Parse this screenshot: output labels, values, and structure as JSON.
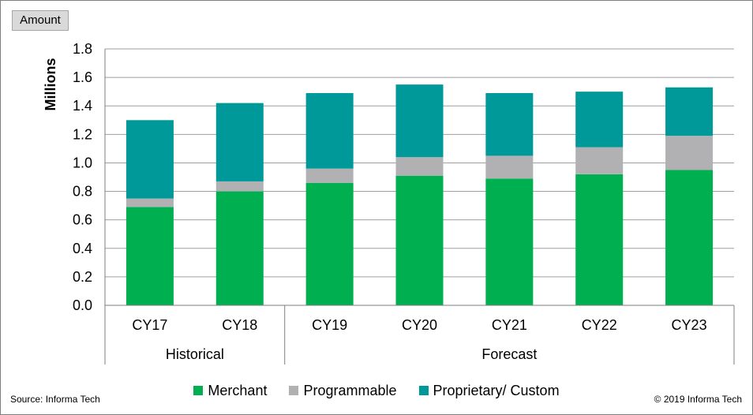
{
  "header": {
    "tag": "Amount"
  },
  "chart_data": {
    "type": "bar",
    "stacked": true,
    "categories": [
      "CY17",
      "CY18",
      "CY19",
      "CY20",
      "CY21",
      "CY22",
      "CY23"
    ],
    "groups": [
      {
        "label": "Historical",
        "categories": [
          "CY17",
          "CY18"
        ]
      },
      {
        "label": "Forecast",
        "categories": [
          "CY19",
          "CY20",
          "CY21",
          "CY22",
          "CY23"
        ]
      }
    ],
    "series": [
      {
        "name": "Merchant",
        "color": "#00b050",
        "values": [
          0.69,
          0.8,
          0.86,
          0.91,
          0.89,
          0.92,
          0.95
        ]
      },
      {
        "name": "Programmable",
        "color": "#b1b1b3",
        "values": [
          0.06,
          0.07,
          0.1,
          0.13,
          0.16,
          0.19,
          0.24
        ]
      },
      {
        "name": "Proprietary/ Custom",
        "color": "#009999",
        "values": [
          0.55,
          0.55,
          0.53,
          0.51,
          0.44,
          0.39,
          0.34
        ]
      }
    ],
    "ylabel": "Millions",
    "ylim": [
      0,
      1.8
    ],
    "yticks": [
      "0.0",
      "0.2",
      "0.4",
      "0.6",
      "0.8",
      "1.0",
      "1.2",
      "1.4",
      "1.6",
      "1.8"
    ],
    "grid": true,
    "legend_position": "bottom"
  },
  "footer": {
    "source": "Source: Informa Tech",
    "copyright": "© 2019 Informa Tech"
  }
}
